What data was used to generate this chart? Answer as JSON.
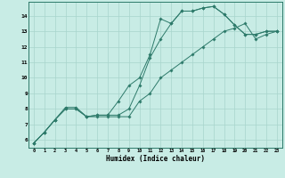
{
  "xlabel": "Humidex (Indice chaleur)",
  "bg_color": "#c8ece5",
  "line_color": "#2d7a6a",
  "grid_color": "#a8d4cc",
  "ylim": [
    5.5,
    14.9
  ],
  "xlim": [
    -0.5,
    23.5
  ],
  "yticks": [
    6,
    7,
    8,
    9,
    10,
    11,
    12,
    13,
    14
  ],
  "xticks": [
    0,
    1,
    2,
    3,
    4,
    5,
    6,
    7,
    8,
    9,
    10,
    11,
    12,
    13,
    14,
    15,
    16,
    17,
    18,
    19,
    20,
    21,
    22,
    23
  ],
  "line1": [
    5.8,
    6.5,
    7.3,
    8.0,
    8.0,
    7.5,
    7.6,
    7.6,
    8.5,
    9.5,
    10.0,
    11.5,
    13.8,
    13.5,
    14.3,
    14.3,
    14.5,
    14.6,
    14.1,
    13.4,
    12.8,
    12.8,
    13.0,
    13.0
  ],
  "line2": [
    5.8,
    6.5,
    7.3,
    8.1,
    8.1,
    7.5,
    7.6,
    7.6,
    7.6,
    8.0,
    9.5,
    11.3,
    12.5,
    13.5,
    14.3,
    14.3,
    14.5,
    14.6,
    14.1,
    13.4,
    12.8,
    12.8,
    13.0,
    13.0
  ],
  "line3": [
    5.8,
    6.5,
    7.3,
    8.0,
    8.0,
    7.5,
    7.5,
    7.5,
    7.5,
    7.5,
    8.5,
    9.0,
    10.0,
    10.5,
    11.0,
    11.5,
    12.0,
    12.5,
    13.0,
    13.2,
    13.5,
    12.5,
    12.8,
    13.0
  ]
}
